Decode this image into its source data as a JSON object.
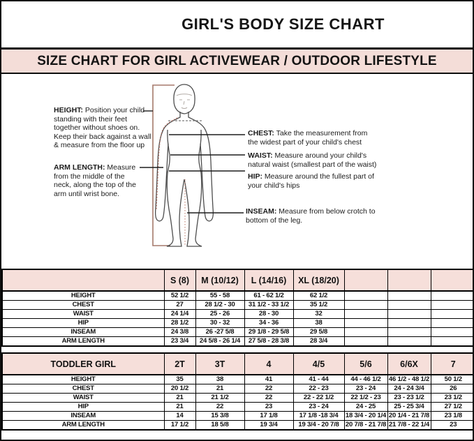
{
  "title": "GIRL'S BODY SIZE CHART",
  "banner": "SIZE CHART FOR GIRL ACTIVEWEAR / OUTDOOR LIFESTYLE",
  "colors": {
    "banner_bg": "#f4ddd8",
    "table_header_bg": "#f6dfda",
    "bracket_line": "#a5796b",
    "dotted_measure_line": "#b5695c",
    "figure_outline": "#4d4d4d"
  },
  "diagram": {
    "figure": "child-body-outline",
    "labels": [
      {
        "term": "HEIGHT:",
        "desc": " Position your child standing with their feet together without shoes on. Keep their back against a wall & measure from the floor up"
      },
      {
        "term": "ARM LENGTH:",
        "desc": " Measure from the middle of the neck, along the top of the arm until wrist bone."
      },
      {
        "term": "CHEST:",
        "desc": " Take the measurement from the widest part of your child's chest"
      },
      {
        "term": "WAIST:",
        "desc": " Measure around your child's natural waist (smallest part of the waist)"
      },
      {
        "term": "HIP:",
        "desc": " Measure around the fullest part of your child's hips"
      },
      {
        "term": "INSEAM:",
        "desc": " Measure from below crotch to bottom of the leg."
      }
    ]
  },
  "tables": [
    {
      "header": [
        "",
        "S (8)",
        "M (10/12)",
        "L (14/16)",
        "XL (18/20)",
        "",
        "",
        ""
      ],
      "rows": [
        {
          "cells": [
            "HEIGHT",
            "52 1/2",
            "55 - 58",
            "61 - 62 1/2",
            "62 1/2",
            "",
            "",
            ""
          ]
        },
        {
          "cells": [
            "CHEST",
            "27",
            "28 1/2 - 30",
            "31 1/2 - 33 1/2",
            "35 1/2",
            "",
            "",
            ""
          ]
        },
        {
          "cells": [
            "WAIST",
            "24 1/4",
            "25 - 26",
            "28 - 30",
            "32",
            "",
            "",
            ""
          ]
        },
        {
          "cells": [
            "HIP",
            "28 1/2",
            "30 - 32",
            "34 - 36",
            "38",
            "",
            "",
            ""
          ]
        },
        {
          "cells": [
            "INSEAM",
            "24 3/8",
            "26 -27 5/8",
            "29 1/8 - 29 5/8",
            "29 5/8",
            "",
            "",
            ""
          ]
        },
        {
          "cells": [
            "ARM LENGTH",
            "23 3/4",
            "24 5/8 - 26 1/4",
            "27 5/8 - 28 3/8",
            "28 3/4",
            "",
            "",
            ""
          ]
        }
      ]
    },
    {
      "header": [
        "TODDLER GIRL",
        "2T",
        "3T",
        "4",
        "4/5",
        "5/6",
        "6/6X",
        "7"
      ],
      "rows": [
        {
          "cells": [
            "HEIGHT",
            "35",
            "38",
            "41",
            "41 - 44",
            "44 - 46 1/2",
            "46 1/2 - 48 1/2",
            "50 1/2"
          ]
        },
        {
          "cells": [
            "CHEST",
            "20 1/2",
            "21",
            "22",
            "22 - 23",
            "23 - 24",
            "24 - 24 3/4",
            "26"
          ]
        },
        {
          "cells": [
            "WAIST",
            "21",
            "21 1/2",
            "22",
            "22 - 22 1/2",
            "22 1/2 - 23",
            "23 - 23 1/2",
            "23 1/2"
          ]
        },
        {
          "cells": [
            "HIP",
            "21",
            "22",
            "23",
            "23 - 24",
            "24 - 25",
            "25 - 25 3/4",
            "27 1/2"
          ]
        },
        {
          "cells": [
            "INSEAM",
            "14",
            "15 3/8",
            "17 1/8",
            "17 1/8 -18 3/4",
            "18 3/4 - 20 1/4",
            "20 1/4 - 21 7/8",
            "23 1/8"
          ]
        },
        {
          "cells": [
            "ARM LENGTH",
            "17 1/2",
            "18 5/8",
            "19 3/4",
            "19 3/4 - 20 7/8",
            "20 7/8 - 21 7/8",
            "21 7/8 - 22 1/4",
            "23"
          ]
        }
      ]
    }
  ]
}
